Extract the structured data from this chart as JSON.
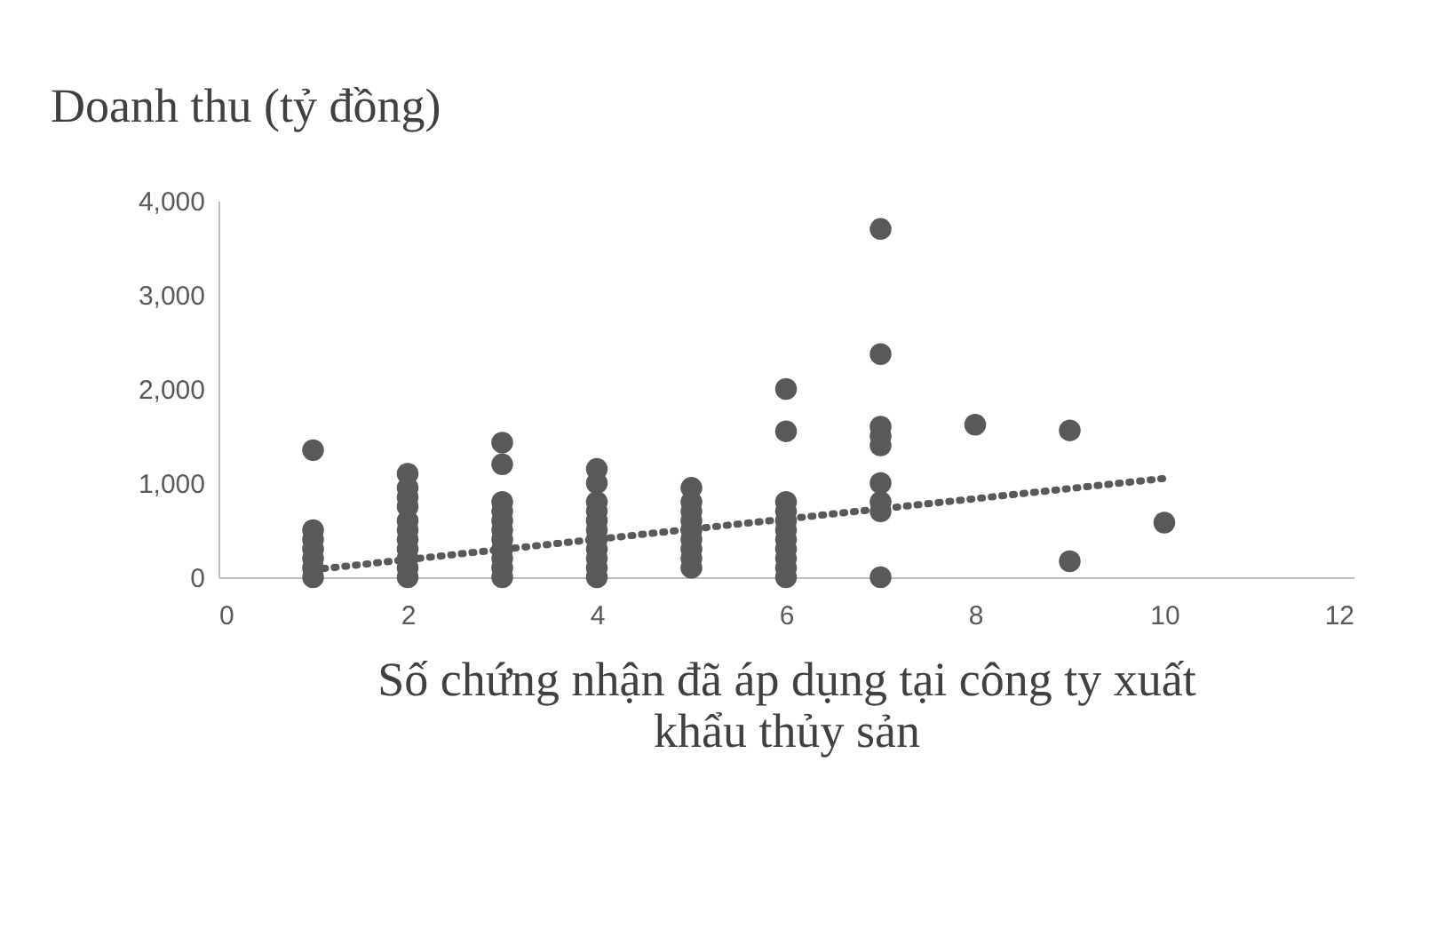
{
  "chart_data": {
    "type": "scatter",
    "ylabel": "Doanh thu (tỷ đồng)",
    "xlabel": "Số chứng nhận đã áp dụng tại công ty xuất khẩu thủy sản",
    "series": [
      {
        "color": "#595959",
        "marker": "circle",
        "x": [
          1,
          1,
          1,
          1,
          1,
          1,
          1,
          2,
          2,
          2,
          2,
          2,
          2,
          2,
          2,
          2,
          2,
          2,
          3,
          3,
          3,
          3,
          3,
          3,
          3,
          3,
          3,
          3,
          3,
          4,
          4,
          4,
          4,
          4,
          4,
          4,
          4,
          4,
          4,
          4,
          5,
          5,
          5,
          5,
          5,
          5,
          5,
          5,
          5,
          6,
          6,
          6,
          6,
          6,
          6,
          6,
          6,
          6,
          6,
          6,
          7,
          7,
          7,
          7,
          7,
          7,
          7,
          7,
          7,
          8,
          9,
          9,
          10
        ],
        "values": [
          1350,
          500,
          400,
          300,
          200,
          100,
          0,
          1100,
          950,
          850,
          750,
          600,
          500,
          400,
          300,
          200,
          100,
          0,
          1430,
          1200,
          800,
          700,
          600,
          500,
          400,
          300,
          200,
          100,
          0,
          1150,
          1000,
          800,
          700,
          600,
          500,
          400,
          300,
          200,
          100,
          0,
          950,
          800,
          700,
          600,
          500,
          400,
          300,
          200,
          100,
          2000,
          1550,
          800,
          700,
          600,
          500,
          400,
          300,
          200,
          100,
          0,
          3700,
          2370,
          1600,
          1500,
          1400,
          1000,
          800,
          700,
          0,
          1620,
          1560,
          170,
          580
        ]
      },
      {
        "type": "line",
        "color": "#595959",
        "line_style": "dotted",
        "x": [
          1,
          10
        ],
        "values": [
          80,
          1050
        ]
      }
    ],
    "xlim": [
      0,
      12
    ],
    "xticks": [
      0,
      2,
      4,
      6,
      8,
      10,
      12
    ],
    "ylim": [
      0,
      4000
    ],
    "yticks": [
      {
        "value": 0,
        "label": "0"
      },
      {
        "value": 1000,
        "label": "1,000"
      },
      {
        "value": 2000,
        "label": "2,000"
      },
      {
        "value": 3000,
        "label": "3,000"
      },
      {
        "value": 4000,
        "label": "4,000"
      }
    ],
    "grid": false
  }
}
